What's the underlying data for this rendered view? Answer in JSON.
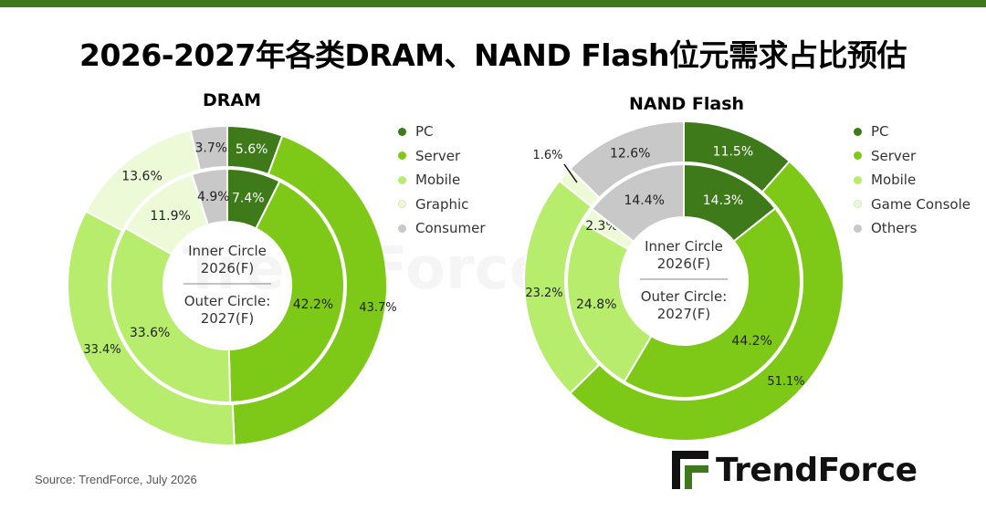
{
  "title": "2026-2027年各类DRAM、NAND Flash位元需求占比预估",
  "source": "Source: TrendForce, July 2026",
  "logo": {
    "text": "TrendForce"
  },
  "watermark": "TrendForce",
  "colors": {
    "pc": "#3f7a1a",
    "server": "#7ec918",
    "mobile": "#b7ec6c",
    "graphic": "#edfad8",
    "consumer": "#c8c8c8",
    "top_bar": "#3f7a1a"
  },
  "chart_data": [
    {
      "type": "pie",
      "subtype": "nested-donut",
      "title": "DRAM",
      "center_top": "Inner Circle 2026(F)",
      "center_bottom": "Outer Circle: 2027(F)",
      "categories": [
        "PC",
        "Server",
        "Mobile",
        "Graphic",
        "Consumer"
      ],
      "series": [
        {
          "name": "2026(F)",
          "ring": "inner",
          "values": [
            7.4,
            42.2,
            33.6,
            11.9,
            4.9
          ],
          "labels": [
            "7.4%",
            "42.2%",
            "33.6%",
            "11.9%",
            "4.9%"
          ]
        },
        {
          "name": "2027(F)",
          "ring": "outer",
          "values": [
            5.6,
            43.7,
            33.4,
            13.6,
            3.7
          ],
          "labels": [
            "5.6%",
            "43.7%",
            "33.4%",
            "13.6%",
            "3.7%"
          ]
        }
      ],
      "legend": [
        "PC",
        "Server",
        "Mobile",
        "Graphic",
        "Consumer"
      ],
      "legend_position": "right"
    },
    {
      "type": "pie",
      "subtype": "nested-donut",
      "title": "NAND Flash",
      "center_top": "Inner Circle 2026(F)",
      "center_bottom": "Outer Circle: 2027(F)",
      "categories": [
        "PC",
        "Server",
        "Mobile",
        "Game Console",
        "Others"
      ],
      "series": [
        {
          "name": "2026(F)",
          "ring": "inner",
          "values": [
            14.3,
            44.2,
            24.8,
            2.3,
            14.4
          ],
          "labels": [
            "14.3%",
            "44.2%",
            "24.8%",
            "2.3%",
            "14.4%"
          ]
        },
        {
          "name": "2027(F)",
          "ring": "outer",
          "values": [
            11.5,
            51.1,
            23.2,
            1.6,
            12.6
          ],
          "labels": [
            "11.5%",
            "51.1%",
            "23.2%",
            "1.6%",
            "12.6%"
          ]
        }
      ],
      "legend": [
        "PC",
        "Server",
        "Mobile",
        "Game Console",
        "Others"
      ],
      "legend_position": "right"
    }
  ]
}
